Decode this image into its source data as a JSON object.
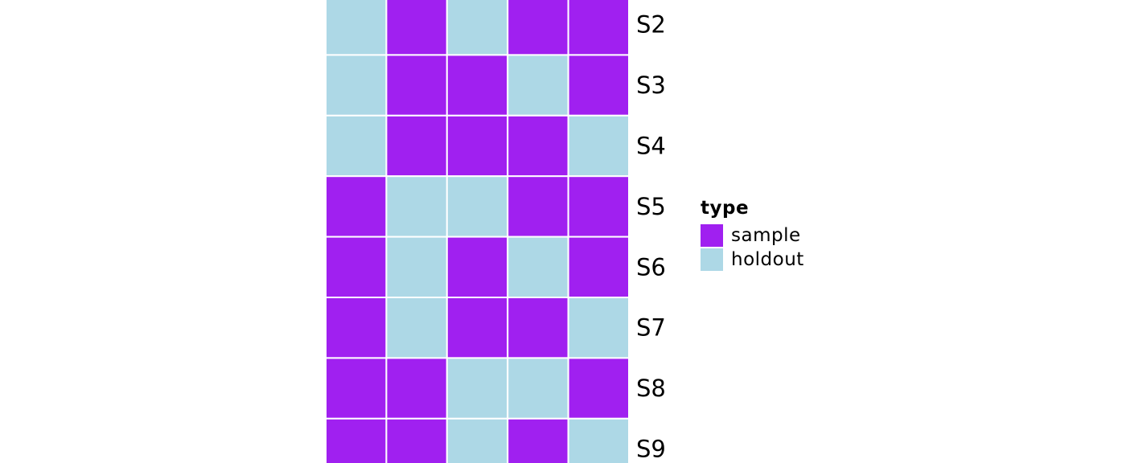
{
  "chart_data": {
    "type": "heatmap",
    "rows": [
      "S2",
      "S3",
      "S4",
      "S5",
      "S6",
      "S7",
      "S8",
      "S9"
    ],
    "matrix": [
      [
        "holdout",
        "sample",
        "holdout",
        "sample",
        "sample"
      ],
      [
        "holdout",
        "sample",
        "sample",
        "holdout",
        "sample"
      ],
      [
        "holdout",
        "sample",
        "sample",
        "sample",
        "holdout"
      ],
      [
        "sample",
        "holdout",
        "holdout",
        "sample",
        "sample"
      ],
      [
        "sample",
        "holdout",
        "sample",
        "holdout",
        "sample"
      ],
      [
        "sample",
        "holdout",
        "sample",
        "sample",
        "holdout"
      ],
      [
        "sample",
        "sample",
        "holdout",
        "holdout",
        "sample"
      ],
      [
        "sample",
        "sample",
        "holdout",
        "sample",
        "holdout"
      ]
    ],
    "colors": {
      "sample": "#A020F0",
      "holdout": "#ADD8E6",
      "border": "#FFFFFF"
    },
    "legend": {
      "title": "type",
      "position": "right",
      "items": [
        {
          "key": "sample",
          "label": "sample"
        },
        {
          "key": "holdout",
          "label": "holdout"
        }
      ]
    }
  }
}
